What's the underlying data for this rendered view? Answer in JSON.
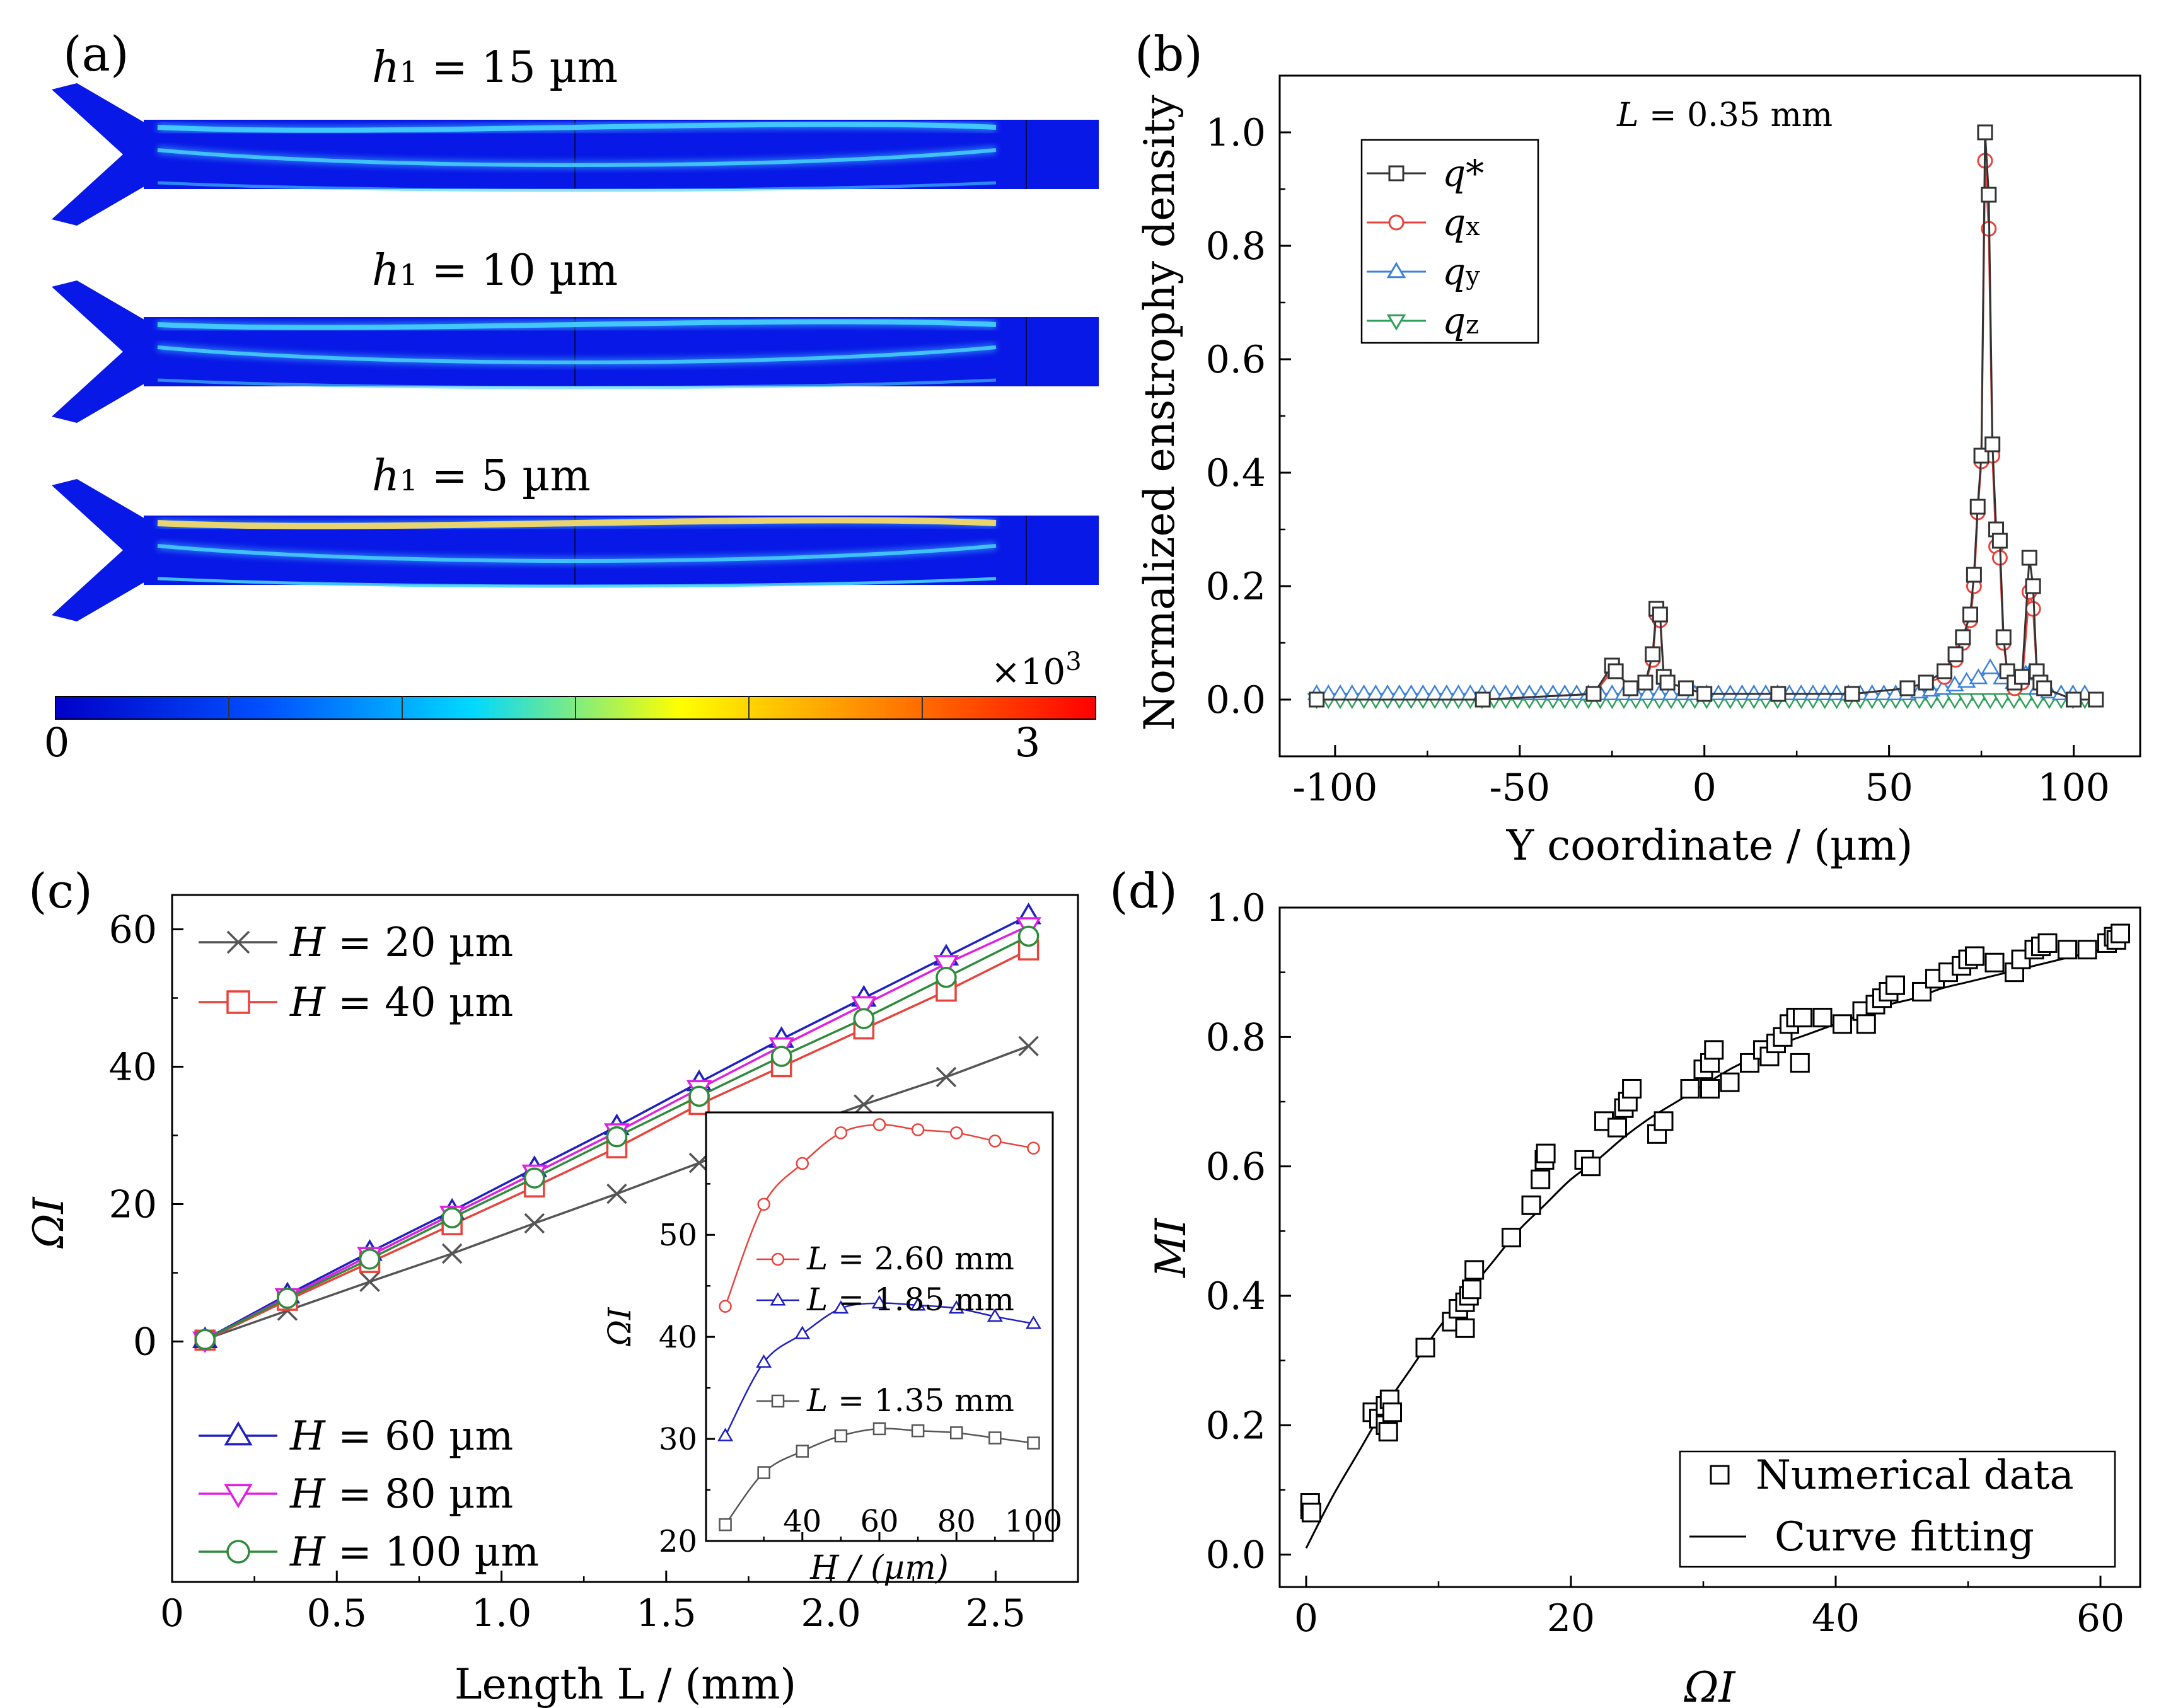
{
  "panels": {
    "a": {
      "label": "(a)",
      "channels": [
        {
          "h_symbol": "h",
          "h_sub": "1",
          "h_rest": " = 15  µm"
        },
        {
          "h_symbol": "h",
          "h_sub": "1",
          "h_rest": " = 10 µm"
        },
        {
          "h_symbol": "h",
          "h_sub": "1",
          "h_rest": " = 5 µm"
        }
      ],
      "colorbar": {
        "min_label": "0",
        "max_label": "3",
        "scale_label": "×10",
        "scale_exp": "3"
      },
      "colors": {
        "cmap": [
          "#0000c8",
          "#0050ff",
          "#00d8ff",
          "#ffff00",
          "#ff8000",
          "#ff0000"
        ],
        "field": "#0818e6",
        "jet": "#46d2ff"
      }
    },
    "b": {
      "label": "(b)"
    },
    "c": {
      "label": "(c)"
    },
    "d": {
      "label": "(d)"
    }
  },
  "chart_data": [
    {
      "type": "line",
      "panel": "b",
      "annotation": {
        "var": "L",
        "rest": " = 0.35 mm"
      },
      "xlabel": "Y coordinate / (µm)",
      "ylabel": "Normalized enstrophy density",
      "xlim": [
        -115,
        118
      ],
      "ylim": [
        -0.1,
        1.1
      ],
      "xticks": [
        -100,
        -50,
        0,
        50,
        100
      ],
      "xtick_labels": [
        "-100",
        "-50",
        "0",
        "50",
        "100"
      ],
      "yticks": [
        0,
        0.2,
        0.4,
        0.6,
        0.8,
        1.0
      ],
      "ytick_labels": [
        "0.0",
        "0.2",
        "0.4",
        "0.6",
        "0.8",
        "1.0"
      ],
      "legend_position": "top-left",
      "series": [
        {
          "name": "q*",
          "label_main": "q*",
          "label_sub": "",
          "marker": "square",
          "color": "#333333",
          "x": [
            -105,
            -60,
            -30,
            -25,
            -24,
            -20,
            -16,
            -14,
            -13,
            -12,
            -11,
            -10,
            -5,
            0,
            20,
            40,
            55,
            60,
            65,
            68,
            70,
            72,
            73,
            74,
            75,
            76,
            77,
            78,
            79,
            80,
            81,
            82,
            84,
            86,
            88,
            89,
            90,
            91,
            92,
            100,
            106
          ],
          "y": [
            0.0,
            0.0,
            0.01,
            0.06,
            0.05,
            0.02,
            0.03,
            0.08,
            0.16,
            0.15,
            0.04,
            0.03,
            0.02,
            0.01,
            0.01,
            0.01,
            0.02,
            0.03,
            0.05,
            0.08,
            0.11,
            0.15,
            0.22,
            0.34,
            0.43,
            1.0,
            0.89,
            0.45,
            0.3,
            0.28,
            0.11,
            0.05,
            0.03,
            0.04,
            0.25,
            0.2,
            0.05,
            0.03,
            0.02,
            0.0,
            0.0
          ]
        },
        {
          "name": "qx",
          "label_main": "q",
          "label_sub": "x",
          "marker": "circle",
          "color": "#e8433c",
          "x": [
            -105,
            -60,
            -30,
            -25,
            -24,
            -20,
            -16,
            -14,
            -13,
            -12,
            -11,
            -10,
            -5,
            0,
            20,
            40,
            55,
            60,
            65,
            68,
            70,
            72,
            73,
            74,
            75,
            76,
            77,
            78,
            79,
            80,
            81,
            82,
            84,
            86,
            88,
            89,
            90,
            91,
            92,
            100,
            106
          ],
          "y": [
            0.0,
            0.0,
            0.01,
            0.05,
            0.05,
            0.02,
            0.03,
            0.07,
            0.15,
            0.14,
            0.04,
            0.03,
            0.02,
            0.01,
            0.01,
            0.01,
            0.02,
            0.03,
            0.04,
            0.07,
            0.1,
            0.14,
            0.2,
            0.33,
            0.42,
            0.95,
            0.83,
            0.43,
            0.27,
            0.25,
            0.1,
            0.05,
            0.02,
            0.03,
            0.19,
            0.16,
            0.05,
            0.03,
            0.02,
            0.0,
            0.0
          ]
        },
        {
          "name": "qy",
          "label_main": "q",
          "label_sub": "y",
          "marker": "triangle-up",
          "color": "#3c82dc",
          "x": [
            -105,
            -95,
            -85,
            -75,
            -65,
            -55,
            -45,
            -35,
            -25,
            -15,
            -5,
            5,
            15,
            25,
            35,
            45,
            55,
            65,
            70,
            75,
            78,
            80,
            83,
            86,
            88,
            90,
            95,
            100,
            106
          ],
          "y": [
            0.01,
            0.01,
            0.01,
            0.01,
            0.01,
            0.01,
            0.01,
            0.01,
            0.01,
            0.01,
            0.01,
            0.01,
            0.01,
            0.01,
            0.01,
            0.01,
            0.01,
            0.02,
            0.03,
            0.04,
            0.06,
            0.04,
            0.03,
            0.03,
            0.06,
            0.02,
            0.01,
            0.01,
            0.01
          ]
        },
        {
          "name": "qz",
          "label_main": "q",
          "label_sub": "z",
          "marker": "triangle-down",
          "color": "#2ea05a",
          "x": [
            -105,
            -95,
            -85,
            -75,
            -65,
            -55,
            -45,
            -35,
            -25,
            -15,
            -5,
            5,
            15,
            25,
            35,
            45,
            55,
            65,
            75,
            85,
            95,
            106
          ],
          "y": [
            0.0,
            0.0,
            0.0,
            0.0,
            0.0,
            0.0,
            0.0,
            0.0,
            0.0,
            0.0,
            0.0,
            0.0,
            0.0,
            0.0,
            0.0,
            0.0,
            0.0,
            0.0,
            0.0,
            0.0,
            0.0,
            0.0
          ]
        }
      ]
    },
    {
      "type": "line",
      "panel": "c",
      "xlabel": "Length L / (mm)",
      "ylabel": "ΩI",
      "xlim": [
        0,
        2.75
      ],
      "ylim": [
        -35,
        65
      ],
      "xticks": [
        0,
        0.5,
        1.0,
        1.5,
        2.0,
        2.5
      ],
      "xtick_labels": [
        "0",
        "0.5",
        "1.0",
        "1.5",
        "2.0",
        "2.5"
      ],
      "yticks": [
        0,
        20,
        40,
        60
      ],
      "ytick_labels": [
        "0",
        "20",
        "40",
        "60"
      ],
      "x": [
        0.1,
        0.35,
        0.6,
        0.85,
        1.1,
        1.35,
        1.6,
        1.85,
        2.1,
        2.35,
        2.6
      ],
      "series": [
        {
          "name": "H = 20 µm",
          "var": "H",
          "rest": " = 20 µm",
          "marker": "x",
          "color": "#555555",
          "values": [
            0.3,
            4.5,
            8.7,
            12.8,
            17.2,
            21.5,
            26.0,
            30.3,
            34.5,
            38.5,
            43.0
          ]
        },
        {
          "name": "H = 40 µm",
          "var": "H",
          "rest": " = 40 µm",
          "marker": "square",
          "color": "#e8433c",
          "values": [
            0.2,
            6.0,
            11.5,
            17.0,
            22.5,
            28.2,
            34.5,
            40.0,
            45.5,
            51.0,
            57.0
          ]
        },
        {
          "name": "H = 60 µm",
          "var": "H",
          "rest": " = 60 µm",
          "marker": "triangle-up",
          "color": "#2020c0",
          "values": [
            0.3,
            6.8,
            13.0,
            19.0,
            25.2,
            31.3,
            37.7,
            44.0,
            50.0,
            56.0,
            62.0
          ]
        },
        {
          "name": "H = 80 µm",
          "var": "H",
          "rest": " = 80 µm",
          "marker": "triangle-down",
          "color": "#e020e0",
          "values": [
            0.2,
            6.5,
            12.5,
            18.5,
            24.5,
            30.5,
            36.8,
            43.0,
            49.0,
            55.0,
            60.5
          ]
        },
        {
          "name": "H = 100 µm",
          "var": "H",
          "rest": " = 100 µm",
          "marker": "circle",
          "color": "#2e8b3c",
          "values": [
            0.3,
            6.3,
            12.0,
            18.0,
            23.8,
            29.8,
            35.7,
            41.5,
            47.0,
            53.0,
            59.0
          ]
        }
      ],
      "inset": {
        "xlabel": "H / (µm)",
        "ylabel": "ΩI",
        "xlim": [
          15,
          105
        ],
        "ylim": [
          20,
          62
        ],
        "xticks": [
          40,
          60,
          80,
          100
        ],
        "xtick_labels": [
          "40",
          "60",
          "80",
          "100"
        ],
        "yticks": [
          20,
          30,
          40,
          50
        ],
        "ytick_labels": [
          "20",
          "30",
          "40",
          "50"
        ],
        "x": [
          20,
          30,
          40,
          50,
          60,
          70,
          80,
          90,
          100
        ],
        "series": [
          {
            "name": "L = 2.60 mm",
            "var": "L",
            "rest": " = 2.60 mm",
            "marker": "circle",
            "color": "#e8433c",
            "values": [
              43.0,
              53.0,
              57.0,
              60.0,
              60.8,
              60.3,
              60.0,
              59.2,
              58.5
            ]
          },
          {
            "name": "L = 1.85 mm",
            "var": "L",
            "rest": " = 1.85 mm",
            "marker": "triangle-up",
            "color": "#2020c0",
            "values": [
              30.3,
              37.5,
              40.3,
              42.8,
              43.3,
              43.1,
              42.8,
              42.0,
              41.3
            ]
          },
          {
            "name": "L = 1.35 mm",
            "var": "L",
            "rest": " = 1.35 mm",
            "marker": "square",
            "color": "#555555",
            "values": [
              21.6,
              26.7,
              28.8,
              30.3,
              31.0,
              30.8,
              30.6,
              30.1,
              29.6
            ]
          }
        ]
      }
    },
    {
      "type": "scatter",
      "panel": "d",
      "xlabel": "ΩI",
      "ylabel": "MI",
      "xlim": [
        -2,
        63
      ],
      "ylim": [
        -0.05,
        1.0
      ],
      "xticks": [
        0,
        20,
        40,
        60
      ],
      "xtick_labels": [
        "0",
        "20",
        "40",
        "60"
      ],
      "yticks": [
        0,
        0.2,
        0.4,
        0.6,
        0.8,
        1.0
      ],
      "ytick_labels": [
        "0.0",
        "0.2",
        "0.4",
        "0.6",
        "0.8",
        "1.0"
      ],
      "legend_position": "bottom-right",
      "series": [
        {
          "name": "Numerical data",
          "marker": "square",
          "color": "#000000",
          "points": [
            [
              0.3,
              0.07
            ],
            [
              0.3,
              0.08
            ],
            [
              0.4,
              0.065
            ],
            [
              5,
              0.22
            ],
            [
              5.5,
              0.21
            ],
            [
              6,
              0.23
            ],
            [
              6,
              0.2
            ],
            [
              6.2,
              0.19
            ],
            [
              6.3,
              0.24
            ],
            [
              6.5,
              0.22
            ],
            [
              9,
              0.32
            ],
            [
              11,
              0.36
            ],
            [
              11.5,
              0.38
            ],
            [
              12,
              0.35
            ],
            [
              12,
              0.39
            ],
            [
              12.3,
              0.4
            ],
            [
              12.5,
              0.41
            ],
            [
              12.7,
              0.44
            ],
            [
              15.5,
              0.49
            ],
            [
              17,
              0.54
            ],
            [
              17.7,
              0.58
            ],
            [
              18,
              0.61
            ],
            [
              18.1,
              0.62
            ],
            [
              21,
              0.61
            ],
            [
              21.5,
              0.6
            ],
            [
              22.5,
              0.67
            ],
            [
              23.5,
              0.66
            ],
            [
              24,
              0.69
            ],
            [
              24.3,
              0.7
            ],
            [
              24.6,
              0.72
            ],
            [
              26.5,
              0.65
            ],
            [
              27,
              0.67
            ],
            [
              29,
              0.72
            ],
            [
              30,
              0.75
            ],
            [
              30.5,
              0.76
            ],
            [
              30.8,
              0.78
            ],
            [
              30.5,
              0.72
            ],
            [
              32,
              0.73
            ],
            [
              33.5,
              0.76
            ],
            [
              34.5,
              0.78
            ],
            [
              35,
              0.77
            ],
            [
              35.5,
              0.79
            ],
            [
              36,
              0.8
            ],
            [
              36.5,
              0.82
            ],
            [
              37,
              0.83
            ],
            [
              37.5,
              0.83
            ],
            [
              37.3,
              0.76
            ],
            [
              39,
              0.83
            ],
            [
              40.5,
              0.82
            ],
            [
              42,
              0.84
            ],
            [
              42.3,
              0.82
            ],
            [
              43,
              0.85
            ],
            [
              43.5,
              0.86
            ],
            [
              44,
              0.87
            ],
            [
              44.5,
              0.88
            ],
            [
              46.5,
              0.87
            ],
            [
              47.5,
              0.89
            ],
            [
              48.5,
              0.9
            ],
            [
              49.5,
              0.91
            ],
            [
              50,
              0.92
            ],
            [
              50.5,
              0.925
            ],
            [
              52,
              0.915
            ],
            [
              53.5,
              0.9
            ],
            [
              54,
              0.92
            ],
            [
              55,
              0.935
            ],
            [
              55.5,
              0.94
            ],
            [
              56,
              0.945
            ],
            [
              57.5,
              0.935
            ],
            [
              59,
              0.935
            ],
            [
              60.5,
              0.945
            ],
            [
              61,
              0.955
            ],
            [
              61.2,
              0.95
            ],
            [
              61.5,
              0.96
            ]
          ]
        },
        {
          "name": "Curve fitting",
          "line": true,
          "color": "#000000",
          "x": [
            0,
            2,
            4,
            6,
            8,
            10,
            12,
            14,
            16,
            18,
            20,
            22,
            24,
            26,
            28,
            30,
            32,
            34,
            36,
            38,
            40,
            42,
            44,
            46,
            48,
            50,
            52,
            54,
            56,
            58,
            60,
            61.5
          ],
          "y": [
            0.01,
            0.09,
            0.16,
            0.23,
            0.29,
            0.35,
            0.4,
            0.45,
            0.5,
            0.54,
            0.58,
            0.61,
            0.645,
            0.675,
            0.7,
            0.725,
            0.75,
            0.77,
            0.79,
            0.805,
            0.82,
            0.835,
            0.85,
            0.86,
            0.875,
            0.885,
            0.895,
            0.905,
            0.915,
            0.925,
            0.935,
            0.945
          ]
        }
      ]
    }
  ]
}
